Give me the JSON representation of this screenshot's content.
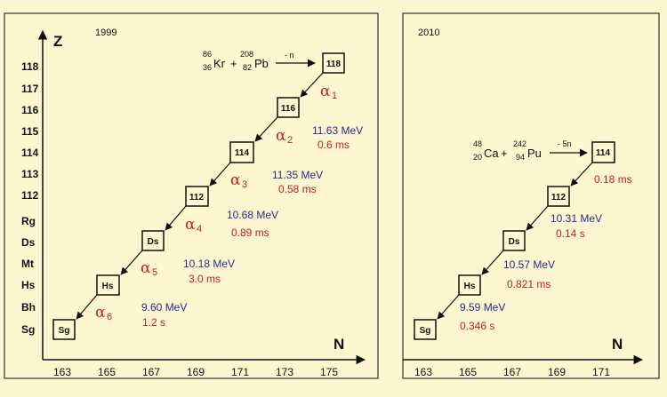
{
  "panels": [
    {
      "year": "1999",
      "y_axis_title": "Z",
      "x_axis_title": "N",
      "y_labels": [
        "118",
        "117",
        "116",
        "115",
        "114",
        "113",
        "112",
        "Rg",
        "Ds",
        "Mt",
        "Hs",
        "Bh",
        "Sg"
      ],
      "x_labels": [
        "163",
        "165",
        "167",
        "169",
        "171",
        "173",
        "175"
      ],
      "reaction": {
        "projectile": {
          "mass": "86",
          "z": "36",
          "symbol": "Kr"
        },
        "target": {
          "mass": "208",
          "z": "82",
          "symbol": "Pb"
        },
        "channel": "- n"
      },
      "nuclei": [
        "118",
        "116",
        "114",
        "112",
        "Ds",
        "Hs",
        "Sg"
      ],
      "decays": [
        {
          "alpha": "α",
          "index": "1",
          "energy": "",
          "halflife": ""
        },
        {
          "alpha": "α",
          "index": "2",
          "energy": "11.63 MeV",
          "halflife": "0.6  ms"
        },
        {
          "alpha": "α",
          "index": "3",
          "energy": "11.35 MeV",
          "halflife": "0.58 ms"
        },
        {
          "alpha": "α",
          "index": "4",
          "energy": "10.68 MeV",
          "halflife": "0.89 ms"
        },
        {
          "alpha": "α",
          "index": "5",
          "energy": "10.18 MeV",
          "halflife": "3.0   ms"
        },
        {
          "alpha": "α",
          "index": "6",
          "energy": "9.60 MeV",
          "halflife": "1.2   s"
        }
      ]
    },
    {
      "year": "2010",
      "x_axis_title": "N",
      "x_labels": [
        "163",
        "165",
        "167",
        "169",
        "171"
      ],
      "reaction": {
        "projectile": {
          "mass": "48",
          "z": "20",
          "symbol": "Ca"
        },
        "target": {
          "mass": "242",
          "z": "94",
          "symbol": "Pu"
        },
        "channel": "- 5n"
      },
      "nuclei": [
        "114",
        "112",
        "Ds",
        "Hs",
        "Sg"
      ],
      "decays": [
        {
          "energy": "",
          "halflife": "0.18 ms"
        },
        {
          "energy": "10.31 MeV",
          "halflife": "0.14 s"
        },
        {
          "energy": "10.57   MeV",
          "halflife": "0.821  ms"
        },
        {
          "energy": "9.59   MeV",
          "halflife": "0.346  s"
        }
      ]
    }
  ],
  "colors": {
    "background": "#fdf6cf",
    "energy": "#2a2a8f",
    "halflife": "#c42020",
    "axis": "#111111"
  }
}
